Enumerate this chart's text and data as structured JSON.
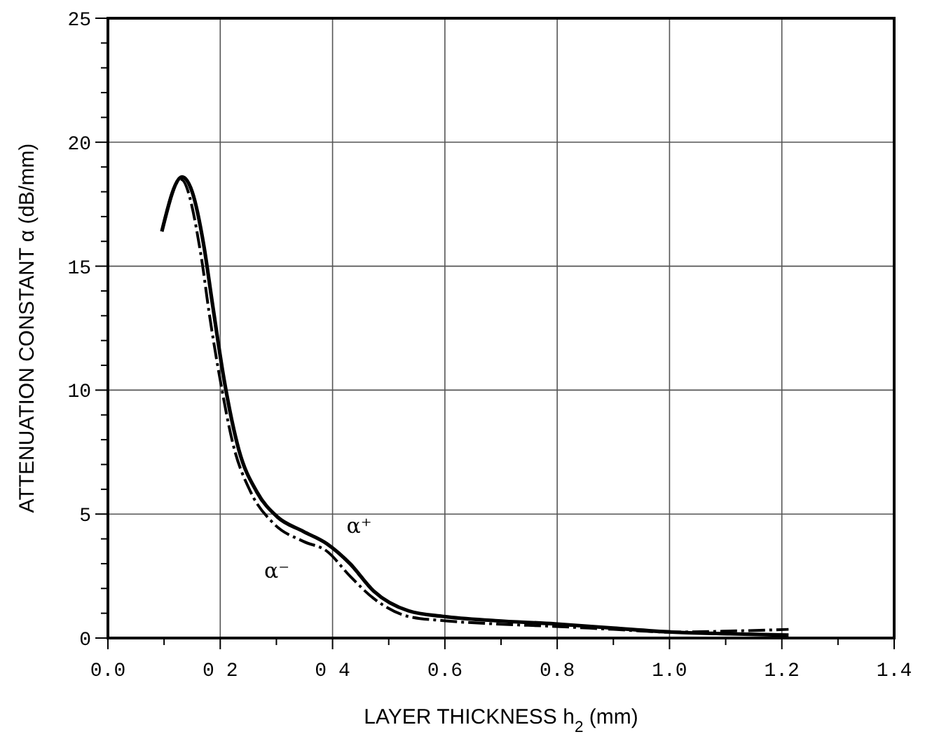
{
  "chart_data": {
    "type": "line",
    "xlabel": "LAYER THICKNESS h$_{2}$ (mm)",
    "ylabel": "ATTENUATION CONSTANT α (dB/mm)",
    "xlim": [
      0,
      1.4
    ],
    "ylim": [
      0,
      25
    ],
    "xticks": [
      {
        "value": 0,
        "label": "0.0"
      },
      {
        "value": 0.2,
        "label": "0 2"
      },
      {
        "value": 0.4,
        "label": "0 4"
      },
      {
        "value": 0.6,
        "label": "0.6"
      },
      {
        "value": 0.8,
        "label": "0.8"
      },
      {
        "value": 1,
        "label": "1.0"
      },
      {
        "value": 1.2,
        "label": "1.2"
      },
      {
        "value": 1.4,
        "label": "1.4"
      }
    ],
    "yticks": [
      0,
      5,
      10,
      15,
      20,
      25
    ],
    "grid": true,
    "legend": false,
    "marker": "none",
    "series": [
      {
        "name": "α⁻",
        "color": "#000000",
        "line_style": "dashed",
        "x": [
          0.096,
          0.13,
          0.166,
          0.181,
          0.2,
          0.223,
          0.254,
          0.296,
          0.348,
          0.39,
          0.431,
          0.473,
          0.535,
          0.598,
          0.69,
          0.796,
          0.9,
          1.004,
          1.108,
          1.212
        ],
        "values": [
          16.4,
          18.5,
          15.4,
          13.0,
          10.4,
          7.8,
          5.9,
          4.6,
          3.9,
          3.5,
          2.5,
          1.6,
          0.87,
          0.7,
          0.57,
          0.47,
          0.35,
          0.24,
          0.28,
          0.35
        ]
      },
      {
        "name": "α⁺",
        "color": "#000000",
        "line_style": "solid",
        "x": [
          0.096,
          0.132,
          0.15,
          0.171,
          0.186,
          0.207,
          0.233,
          0.265,
          0.301,
          0.348,
          0.39,
          0.431,
          0.473,
          0.535,
          0.598,
          0.69,
          0.796,
          0.9,
          1.004,
          1.108,
          1.212
        ],
        "values": [
          16.4,
          18.6,
          18.0,
          15.8,
          13.5,
          10.4,
          7.6,
          5.9,
          4.9,
          4.3,
          3.8,
          3.0,
          1.9,
          1.1,
          0.87,
          0.7,
          0.57,
          0.4,
          0.24,
          0.17,
          0.12
        ]
      }
    ]
  }
}
